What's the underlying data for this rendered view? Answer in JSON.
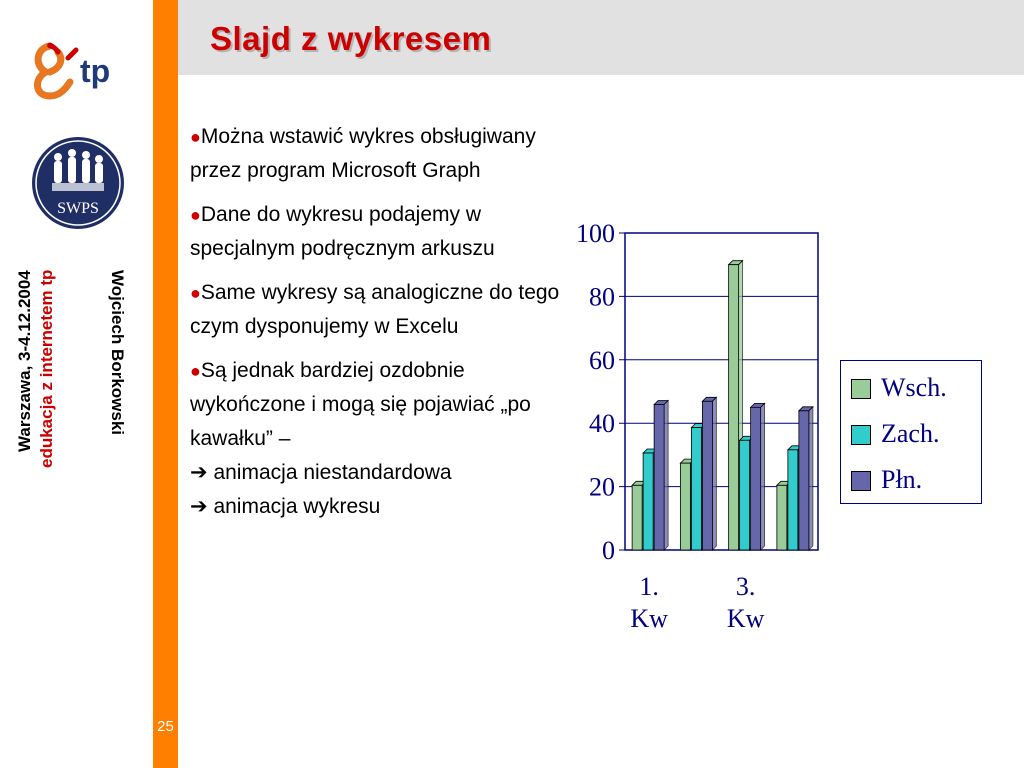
{
  "slide": {
    "title": "Slajd z wykresem",
    "number": "25",
    "author": "Wojciech Borkowski",
    "event": "edukacja z internetem tp",
    "place_date": "Warszawa, 3-4.12.2004"
  },
  "logos": {
    "tp_text": "tp",
    "swps_text": "SWPS"
  },
  "bullets": [
    {
      "text": "Można wstawić wykres obsługiwany przez program Microsoft Graph"
    },
    {
      "text": "Dane do wykresu podajemy w specjalnym podręcznym arkuszu"
    },
    {
      "text": "Same wykresy są analogiczne do tego czym dysponujemy w Excelu"
    },
    {
      "text": "Są jednak bardziej ozdobnie wykończone i mogą się pojawiać „po kawałku” –",
      "line2": "animacja niestandardowa",
      "line3": "animacja wykresu"
    }
  ],
  "colors": {
    "accent": "#ff7f00",
    "title": "#cc0000",
    "bullet": "#cc0000",
    "chart_text": "#000080"
  },
  "chart_data": {
    "type": "bar",
    "categories": [
      "1. Kw",
      "",
      "3. Kw",
      ""
    ],
    "series": [
      {
        "name": "Wsch.",
        "values": [
          20.4,
          27.4,
          90,
          20.4
        ],
        "color": "#99cc99"
      },
      {
        "name": "Zach.",
        "values": [
          30.6,
          38.6,
          34.6,
          31.6
        ],
        "color": "#33cccc"
      },
      {
        "name": "Płn.",
        "values": [
          45.9,
          46.9,
          45,
          43.9
        ],
        "color": "#6666aa"
      }
    ],
    "ylim": [
      0,
      100
    ],
    "yticks": [
      0,
      20,
      40,
      60,
      80,
      100
    ],
    "grid": true,
    "legend": "right",
    "title": "",
    "xlabel": "",
    "ylabel": ""
  }
}
